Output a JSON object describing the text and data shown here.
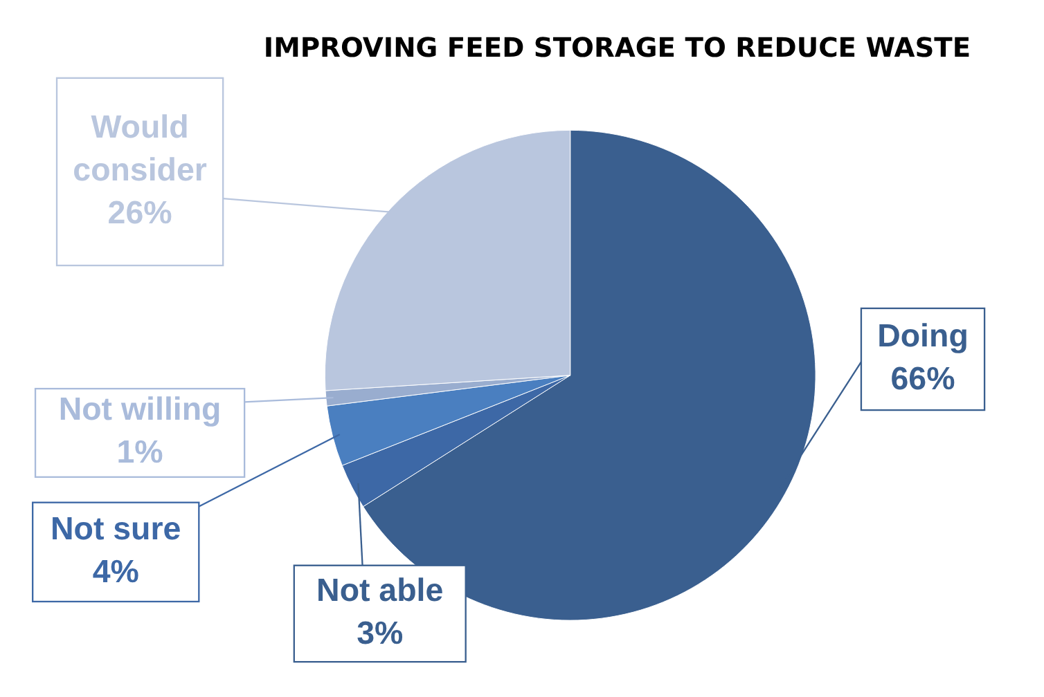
{
  "chart_data": {
    "type": "pie",
    "title": "IMPROVING FEED STORAGE TO REDUCE WASTE",
    "categories": [
      "Doing",
      "Not able",
      "Not sure",
      "Not willing",
      "Would consider"
    ],
    "values": [
      66,
      3,
      4,
      1,
      26
    ],
    "colors": [
      "#3a5f8f",
      "#3d68a6",
      "#4a7fc0",
      "#99adcf",
      "#b9c6de"
    ],
    "value_labels": [
      "66%",
      "3%",
      "4%",
      "1%",
      "26%"
    ]
  }
}
